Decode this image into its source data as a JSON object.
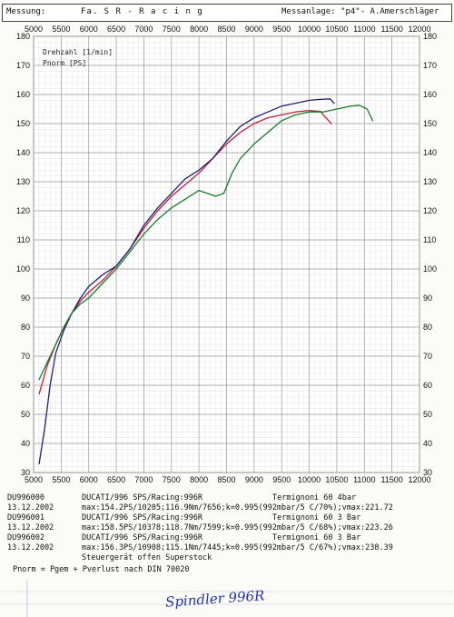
{
  "header": {
    "messung_label": "Messung:",
    "company": "Fa. S R - R a c i n g",
    "messanlage_label": "Messanlage: \"p4\"- A.Amerschläger"
  },
  "chart_data": {
    "type": "line",
    "ylabel_rpm": "Drehzahl [1/min]",
    "ylabel_power": "Pnorm [PS]",
    "x_ticks": [
      5000,
      5500,
      6000,
      6500,
      7000,
      7500,
      8000,
      8500,
      9000,
      9500,
      10000,
      10500,
      11000,
      11500,
      12000
    ],
    "y_ticks": [
      30,
      40,
      50,
      60,
      70,
      80,
      90,
      100,
      110,
      120,
      130,
      140,
      150,
      160,
      170,
      180
    ],
    "xlim": [
      5000,
      12000
    ],
    "ylim": [
      30,
      180
    ],
    "grid": true,
    "series": [
      {
        "name": "DU996000",
        "color": "#c0203a",
        "x": [
          5100,
          5250,
          5400,
          5550,
          5700,
          5850,
          6000,
          6250,
          6500,
          6750,
          7000,
          7250,
          7500,
          7750,
          8000,
          8250,
          8500,
          8750,
          9000,
          9250,
          9500,
          9750,
          10000,
          10205,
          10300,
          10400
        ],
        "y": [
          57,
          67,
          74,
          80,
          85,
          89,
          92,
          96,
          101,
          107,
          114,
          120,
          125,
          129,
          133,
          138,
          143,
          147,
          150,
          152,
          153,
          154,
          154.5,
          154.2,
          152,
          150
        ]
      },
      {
        "name": "DU996001",
        "color": "#20206e",
        "x": [
          5100,
          5200,
          5300,
          5400,
          5550,
          5700,
          5850,
          6000,
          6250,
          6500,
          6750,
          7000,
          7250,
          7500,
          7750,
          8000,
          8250,
          8500,
          8750,
          9000,
          9250,
          9500,
          9750,
          10000,
          10200,
          10378,
          10450
        ],
        "y": [
          33,
          45,
          60,
          71,
          79,
          85,
          90,
          94,
          98,
          101,
          107,
          115,
          121,
          126,
          131,
          134,
          138,
          144,
          149,
          152,
          154,
          156,
          157,
          158,
          158.3,
          158.5,
          157
        ]
      },
      {
        "name": "DU996002",
        "color": "#1c7a2a",
        "x": [
          5100,
          5250,
          5400,
          5550,
          5700,
          5850,
          6000,
          6250,
          6500,
          6750,
          7000,
          7250,
          7500,
          7750,
          8000,
          8150,
          8300,
          8450,
          8600,
          8750,
          9000,
          9250,
          9500,
          9750,
          10000,
          10250,
          10500,
          10750,
          10908,
          11050,
          11150
        ],
        "y": [
          62,
          68,
          74,
          80,
          85,
          88,
          90,
          95,
          100,
          106,
          112,
          117,
          121,
          124,
          127,
          126,
          125,
          126,
          133,
          138,
          143,
          147,
          151,
          153,
          154,
          154,
          155,
          156,
          156.3,
          155,
          151
        ]
      }
    ]
  },
  "legend": [
    {
      "id": "DU996000",
      "title": "DUCATI/996 SPS/Racing:996R",
      "config": "Termignoni 60 4bar",
      "date": "13.12.2002",
      "details": "max:154.2PS/10205;116.9Nm/7656;k=0.995(992mbar/5 C/70%);vmax:221.72",
      "color": "#c0203a"
    },
    {
      "id": "DU996001",
      "title": "DUCATI/996 SPS/Racing:996R",
      "config": "Termignoni 60 3 Bar",
      "date": "13.12.2002",
      "details": "max:158.5PS/10378;118.7Nm/7599;k=0.995(992mbar/5 C/68%);vmax:223.26",
      "color": "#20206e"
    },
    {
      "id": "DU996002",
      "title": "DUCATI/996 SPS/Racing:996R",
      "config": "Termignoni 60 3 Bar",
      "date": "13.12.2002",
      "details": "max:156.3PS/10908;115.1Nm/7445;k=0.995(992mbar/5 C/67%);vmax:238.39",
      "note": "Steuergerät offen Superstock",
      "color": "#1c7a2a"
    }
  ],
  "footnote": "Pnorm = Pgem + Pverlust nach DIN 70020",
  "handwriting": "Spindler 996R"
}
